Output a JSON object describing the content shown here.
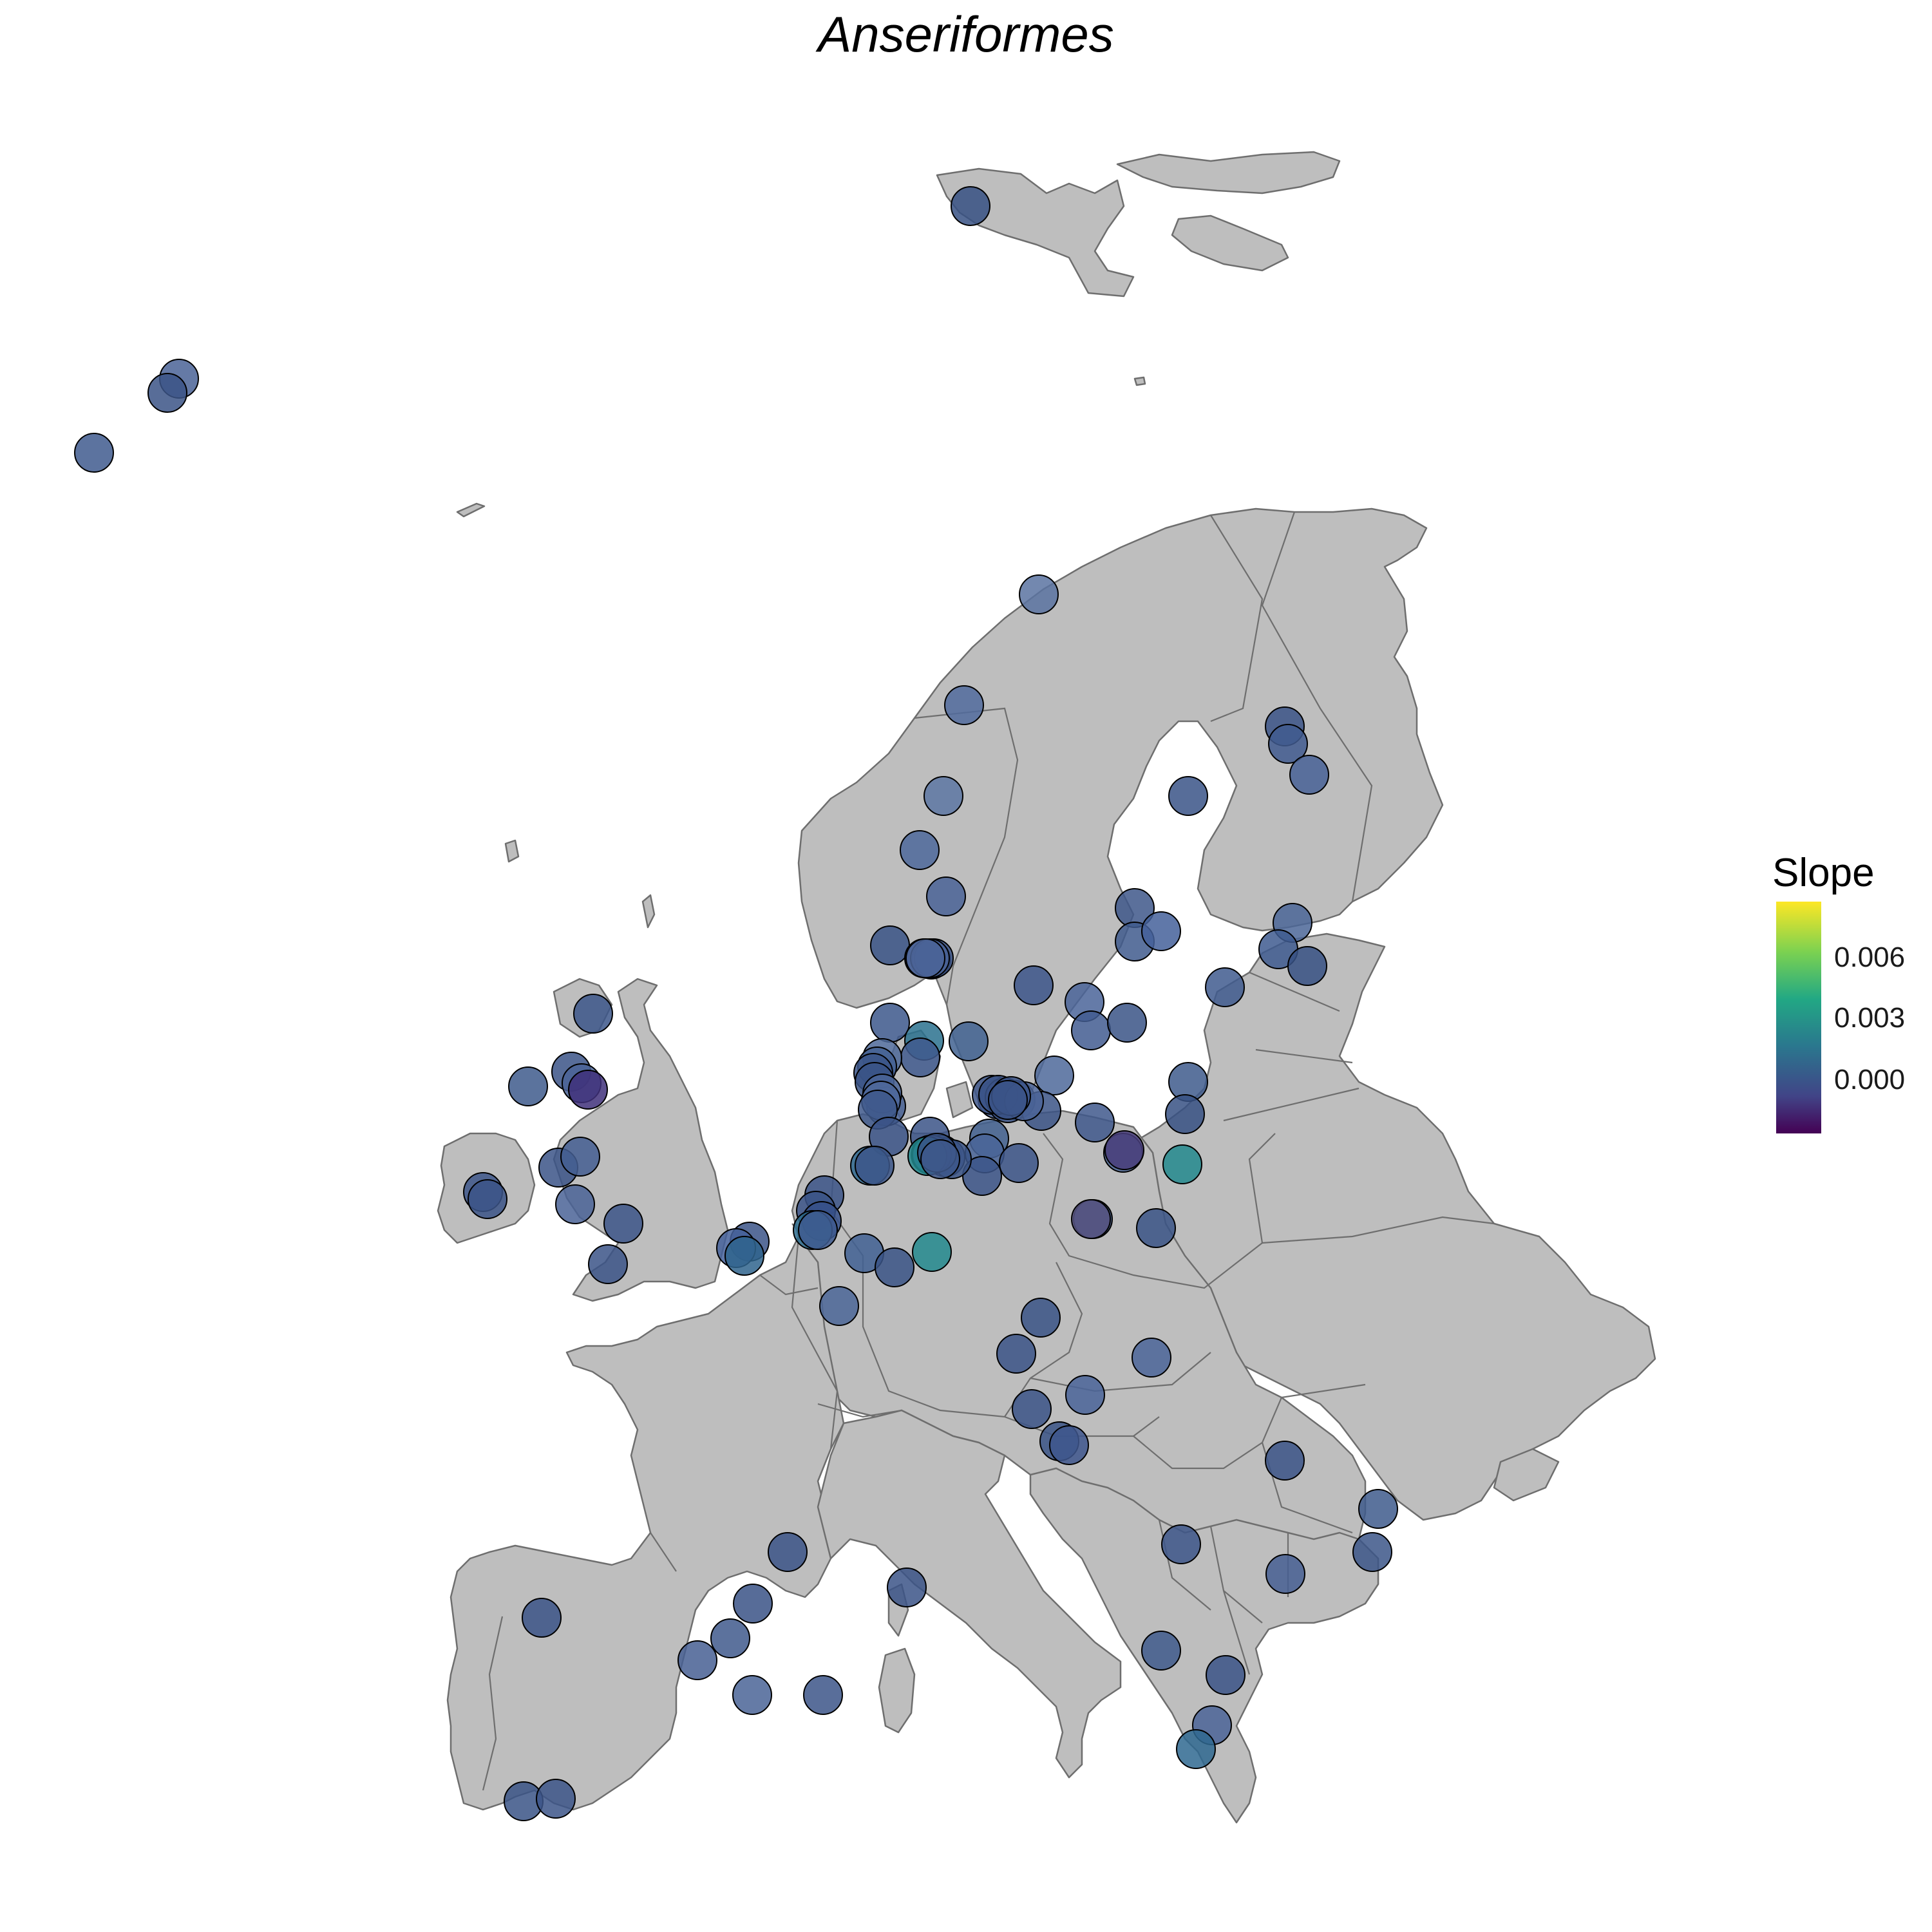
{
  "title": "Anseriformes",
  "legend": {
    "title": "Slope",
    "ticks": [
      "0.006",
      "0.003",
      "0.000"
    ],
    "colors": [
      "#440154",
      "#414487",
      "#2a788e",
      "#22a884",
      "#7ad151",
      "#fde725"
    ]
  },
  "map": {
    "land_color": "#bebebe",
    "border_color": "#6e6e6e",
    "point_outline": "#000000"
  },
  "points": [
    {
      "c": "#375184"
    },
    {
      "c": "#4a6397"
    },
    {
      "c": "#3b5486"
    },
    {
      "c": "#3f5a8e"
    },
    {
      "c": "#5a73a1"
    },
    {
      "c": "#516b9d"
    },
    {
      "c": "#5d77a3"
    },
    {
      "c": "#4e689b"
    },
    {
      "c": "#4a6397"
    },
    {
      "c": "#3a5386"
    },
    {
      "c": "#4f6a9c"
    },
    {
      "c": "#415a90"
    },
    {
      "c": "#3d5689"
    },
    {
      "c": "#4a6397"
    },
    {
      "c": "#4b6498"
    },
    {
      "c": "#3b5487"
    },
    {
      "c": "#415a8f"
    },
    {
      "c": "#486296"
    },
    {
      "c": "#3a5387"
    },
    {
      "c": "#3e5789"
    },
    {
      "c": "#405a8d"
    },
    {
      "c": "#44609a"
    },
    {
      "c": "#4b6698"
    },
    {
      "c": "#3e5b8f"
    },
    {
      "c": "#375184"
    },
    {
      "c": "#3f5a8e"
    },
    {
      "c": "#3c5589"
    },
    {
      "c": "#4a6499"
    },
    {
      "c": "#425c91"
    },
    {
      "c": "#3a5386"
    },
    {
      "c": "#3c578b"
    },
    {
      "c": "#2a718e"
    },
    {
      "c": "#416190"
    },
    {
      "c": "#415a8e"
    },
    {
      "c": "#4d6899"
    },
    {
      "c": "#436093"
    },
    {
      "c": "#3b5588"
    },
    {
      "c": "#3a5386"
    },
    {
      "c": "#455f93"
    },
    {
      "c": "#4b6598"
    },
    {
      "c": "#4f689b"
    },
    {
      "c": "#3e588b"
    },
    {
      "c": "#3b5487"
    },
    {
      "c": "#4d689a"
    },
    {
      "c": "#3e5689"
    },
    {
      "c": "#3c5587"
    },
    {
      "c": "#3f598c"
    },
    {
      "c": "#3a5286"
    },
    {
      "c": "#3b5486"
    },
    {
      "c": "#3f588c"
    },
    {
      "c": "#3b5487"
    },
    {
      "c": "#3b5487"
    },
    {
      "c": "#42608f"
    },
    {
      "c": "#4a6599"
    },
    {
      "c": "#3c568b"
    },
    {
      "c": "#425b91"
    },
    {
      "c": "#466094"
    },
    {
      "c": "#3c5588"
    },
    {
      "c": "#2f6891"
    },
    {
      "c": "#3c5588"
    },
    {
      "c": "#3a5386"
    },
    {
      "c": "#3e5a8c"
    },
    {
      "c": "#375184"
    },
    {
      "c": "#4d6898"
    },
    {
      "c": "#3c5688"
    },
    {
      "c": "#3e588b"
    },
    {
      "c": "#3b5487"
    },
    {
      "c": "#3b5487"
    },
    {
      "c": "#36508a"
    },
    {
      "c": "#2e6d8f"
    },
    {
      "c": "#3b5487"
    },
    {
      "c": "#44609a"
    },
    {
      "c": "#416093"
    },
    {
      "c": "#3a5386"
    },
    {
      "c": "#3e5b8f"
    },
    {
      "c": "#2f648d"
    },
    {
      "c": "#23898e"
    },
    {
      "c": "#3a5386"
    },
    {
      "c": "#4b6698"
    },
    {
      "c": "#56527f"
    },
    {
      "c": "#3a5386"
    },
    {
      "c": "#4b6599"
    },
    {
      "c": "#3b5487"
    },
    {
      "c": "#4a6499"
    },
    {
      "c": "#3b5487"
    },
    {
      "c": "#3a5386"
    },
    {
      "c": "#3e568d"
    },
    {
      "c": "#23898e"
    },
    {
      "c": "#483d7a"
    },
    {
      "c": "#3c5689"
    },
    {
      "c": "#3b5487"
    },
    {
      "c": "#3e5a8c"
    },
    {
      "c": "#4b6498"
    },
    {
      "c": "#40307a"
    },
    {
      "c": "#4a6397"
    },
    {
      "c": "#3c5588"
    },
    {
      "c": "#3b5487"
    },
    {
      "c": "#3d5689"
    },
    {
      "c": "#3b5487"
    },
    {
      "c": "#3b5487"
    },
    {
      "c": "#445e92"
    },
    {
      "c": "#3b5487"
    },
    {
      "c": "#3e5a8c"
    },
    {
      "c": "#3c5688"
    },
    {
      "c": "#3d5689"
    },
    {
      "c": "#475f93"
    },
    {
      "c": "#3b5487"
    },
    {
      "c": "#3b5487"
    },
    {
      "c": "#3a5286"
    },
    {
      "c": "#3f598c"
    },
    {
      "c": "#475f93"
    },
    {
      "c": "#4a6497"
    },
    {
      "c": "#3c5588"
    },
    {
      "c": "#3b5487"
    },
    {
      "c": "#3a5386"
    },
    {
      "c": "#3c5588"
    },
    {
      "c": "#3f5a8c"
    },
    {
      "c": "#3b5487"
    },
    {
      "c": "#4b6498"
    },
    {
      "c": "#2f6891"
    },
    {
      "c": "#3e598c"
    },
    {
      "c": "#23898e"
    },
    {
      "c": "#3a5386"
    },
    {
      "c": "#3e588b"
    },
    {
      "c": "#3b5487"
    },
    {
      "c": "#4b6498"
    },
    {
      "c": "#3c5588"
    },
    {
      "c": "#3b5487"
    }
  ]
}
